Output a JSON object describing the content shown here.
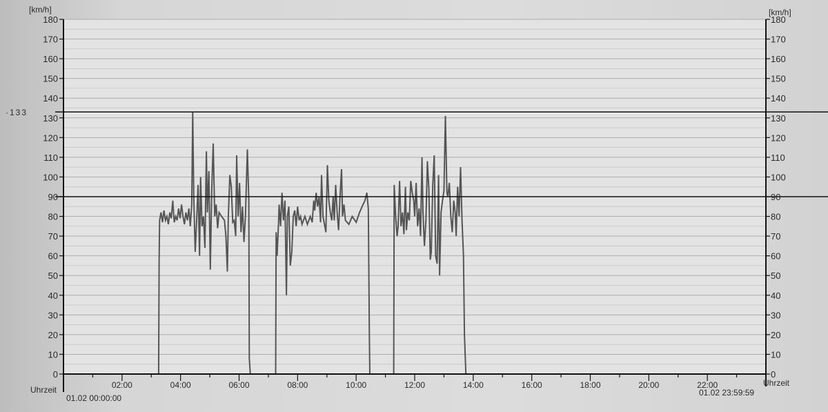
{
  "chart_data": {
    "type": "line",
    "title": "",
    "ylabel_left": "[km/h]",
    "ylabel_right": "[km/h]",
    "xlabel_left": "Uhrzeit",
    "xlabel_right": "Uhrzeit",
    "start_label": "01.02 00:00:00",
    "end_label": "01.02 23:59:59",
    "ylim": [
      0,
      180
    ],
    "yticks": [
      0,
      10,
      20,
      30,
      40,
      50,
      60,
      70,
      80,
      90,
      100,
      110,
      120,
      130,
      140,
      150,
      160,
      170,
      180
    ],
    "xlim_hours": [
      0,
      24
    ],
    "xticks": [
      "02:00",
      "04:00",
      "06:00",
      "08:00",
      "10:00",
      "12:00",
      "14:00",
      "16:00",
      "18:00",
      "20:00",
      "22:00"
    ],
    "grid": true,
    "reference_lines": [
      {
        "value": 133,
        "label": "133"
      },
      {
        "value": 90,
        "label": ""
      }
    ],
    "colors": {
      "series": "#555555",
      "reference": "#111111",
      "grid": "#a8a8a8"
    },
    "series": [
      {
        "points": [
          [
            "03:15",
            0
          ],
          [
            "03:16",
            57
          ],
          [
            "03:17",
            78
          ],
          [
            "03:20",
            82
          ],
          [
            "03:23",
            77
          ],
          [
            "03:26",
            83
          ],
          [
            "03:29",
            78
          ],
          [
            "03:32",
            80
          ],
          [
            "03:35",
            76
          ],
          [
            "03:38",
            82
          ],
          [
            "03:41",
            79
          ],
          [
            "03:44",
            88
          ],
          [
            "03:47",
            77
          ],
          [
            "03:50",
            80
          ],
          [
            "03:53",
            78
          ],
          [
            "03:56",
            84
          ],
          [
            "03:59",
            79
          ],
          [
            "04:02",
            86
          ],
          [
            "04:05",
            80
          ],
          [
            "04:08",
            76
          ],
          [
            "04:11",
            82
          ],
          [
            "04:14",
            78
          ],
          [
            "04:17",
            84
          ],
          [
            "04:20",
            75
          ],
          [
            "04:23",
            86
          ],
          [
            "04:25",
            133
          ],
          [
            "04:27",
            90
          ],
          [
            "04:30",
            62
          ],
          [
            "04:33",
            78
          ],
          [
            "04:36",
            96
          ],
          [
            "04:39",
            60
          ],
          [
            "04:41",
            100
          ],
          [
            "04:44",
            75
          ],
          [
            "04:47",
            80
          ],
          [
            "04:50",
            64
          ],
          [
            "04:53",
            113
          ],
          [
            "04:55",
            82
          ],
          [
            "04:58",
            103
          ],
          [
            "05:01",
            53
          ],
          [
            "05:04",
            94
          ],
          [
            "05:07",
            117
          ],
          [
            "05:10",
            80
          ],
          [
            "05:13",
            86
          ],
          [
            "05:16",
            74
          ],
          [
            "05:19",
            82
          ],
          [
            "05:24",
            80
          ],
          [
            "05:30",
            78
          ],
          [
            "05:33",
            70
          ],
          [
            "05:36",
            52
          ],
          [
            "05:38",
            80
          ],
          [
            "05:41",
            101
          ],
          [
            "05:44",
            95
          ],
          [
            "05:47",
            77
          ],
          [
            "05:50",
            78
          ],
          [
            "05:53",
            70
          ],
          [
            "05:55",
            111
          ],
          [
            "05:58",
            80
          ],
          [
            "06:01",
            97
          ],
          [
            "06:04",
            72
          ],
          [
            "06:07",
            85
          ],
          [
            "06:10",
            67
          ],
          [
            "06:13",
            80
          ],
          [
            "06:17",
            114
          ],
          [
            "06:20",
            88
          ],
          [
            "06:21",
            8
          ],
          [
            "06:23",
            0
          ]
        ]
      },
      {
        "points": [
          [
            "07:15",
            0
          ],
          [
            "07:16",
            72
          ],
          [
            "07:18",
            60
          ],
          [
            "07:21",
            78
          ],
          [
            "07:22",
            86
          ],
          [
            "07:25",
            75
          ],
          [
            "07:28",
            92
          ],
          [
            "07:31",
            78
          ],
          [
            "07:34",
            88
          ],
          [
            "07:37",
            40
          ],
          [
            "07:39",
            80
          ],
          [
            "07:42",
            85
          ],
          [
            "07:45",
            55
          ],
          [
            "07:48",
            62
          ],
          [
            "07:51",
            80
          ],
          [
            "07:54",
            83
          ],
          [
            "07:57",
            75
          ],
          [
            "08:00",
            85
          ],
          [
            "08:03",
            78
          ],
          [
            "08:06",
            80
          ],
          [
            "08:09",
            76
          ],
          [
            "08:15",
            80
          ],
          [
            "08:20",
            76
          ],
          [
            "08:26",
            80
          ],
          [
            "08:30",
            77
          ],
          [
            "08:33",
            88
          ],
          [
            "08:35",
            83
          ],
          [
            "08:38",
            92
          ],
          [
            "08:41",
            85
          ],
          [
            "08:44",
            90
          ],
          [
            "08:47",
            77
          ],
          [
            "08:49",
            101
          ],
          [
            "08:52",
            80
          ],
          [
            "08:55",
            76
          ],
          [
            "08:58",
            72
          ],
          [
            "09:01",
            106
          ],
          [
            "09:04",
            88
          ],
          [
            "09:07",
            82
          ],
          [
            "09:10",
            78
          ],
          [
            "09:13",
            90
          ],
          [
            "09:15",
            78
          ],
          [
            "09:18",
            96
          ],
          [
            "09:21",
            82
          ],
          [
            "09:24",
            73
          ],
          [
            "09:27",
            90
          ],
          [
            "09:30",
            104
          ],
          [
            "09:32",
            80
          ],
          [
            "09:35",
            86
          ],
          [
            "09:38",
            78
          ],
          [
            "09:45",
            76
          ],
          [
            "09:52",
            80
          ],
          [
            "10:00",
            77
          ],
          [
            "10:07",
            82
          ],
          [
            "10:14",
            86
          ],
          [
            "10:18",
            88
          ],
          [
            "10:22",
            92
          ],
          [
            "10:25",
            84
          ],
          [
            "10:27",
            20
          ],
          [
            "10:28",
            0
          ]
        ]
      },
      {
        "points": [
          [
            "11:17",
            0
          ],
          [
            "11:18",
            96
          ],
          [
            "11:21",
            80
          ],
          [
            "11:24",
            70
          ],
          [
            "11:26",
            75
          ],
          [
            "11:29",
            98
          ],
          [
            "11:32",
            75
          ],
          [
            "11:35",
            82
          ],
          [
            "11:38",
            71
          ],
          [
            "11:41",
            95
          ],
          [
            "11:43",
            73
          ],
          [
            "11:46",
            82
          ],
          [
            "11:49",
            78
          ],
          [
            "11:52",
            98
          ],
          [
            "11:55",
            92
          ],
          [
            "11:58",
            88
          ],
          [
            "12:00",
            80
          ],
          [
            "12:03",
            97
          ],
          [
            "12:06",
            75
          ],
          [
            "12:09",
            84
          ],
          [
            "12:12",
            70
          ],
          [
            "12:15",
            110
          ],
          [
            "12:17",
            82
          ],
          [
            "12:20",
            65
          ],
          [
            "12:23",
            78
          ],
          [
            "12:26",
            108
          ],
          [
            "12:29",
            94
          ],
          [
            "12:32",
            58
          ],
          [
            "12:34",
            62
          ],
          [
            "12:37",
            96
          ],
          [
            "12:40",
            111
          ],
          [
            "12:43",
            60
          ],
          [
            "12:46",
            56
          ],
          [
            "12:49",
            101
          ],
          [
            "12:51",
            50
          ],
          [
            "12:54",
            82
          ],
          [
            "12:57",
            88
          ],
          [
            "13:00",
            93
          ],
          [
            "13:03",
            131
          ],
          [
            "13:06",
            92
          ],
          [
            "13:08",
            90
          ],
          [
            "13:11",
            97
          ],
          [
            "13:14",
            80
          ],
          [
            "13:17",
            72
          ],
          [
            "13:20",
            88
          ],
          [
            "13:23",
            82
          ],
          [
            "13:25",
            70
          ],
          [
            "13:28",
            95
          ],
          [
            "13:31",
            80
          ],
          [
            "13:34",
            105
          ],
          [
            "13:37",
            78
          ],
          [
            "13:40",
            60
          ],
          [
            "13:42",
            20
          ],
          [
            "13:45",
            0
          ]
        ]
      }
    ]
  }
}
